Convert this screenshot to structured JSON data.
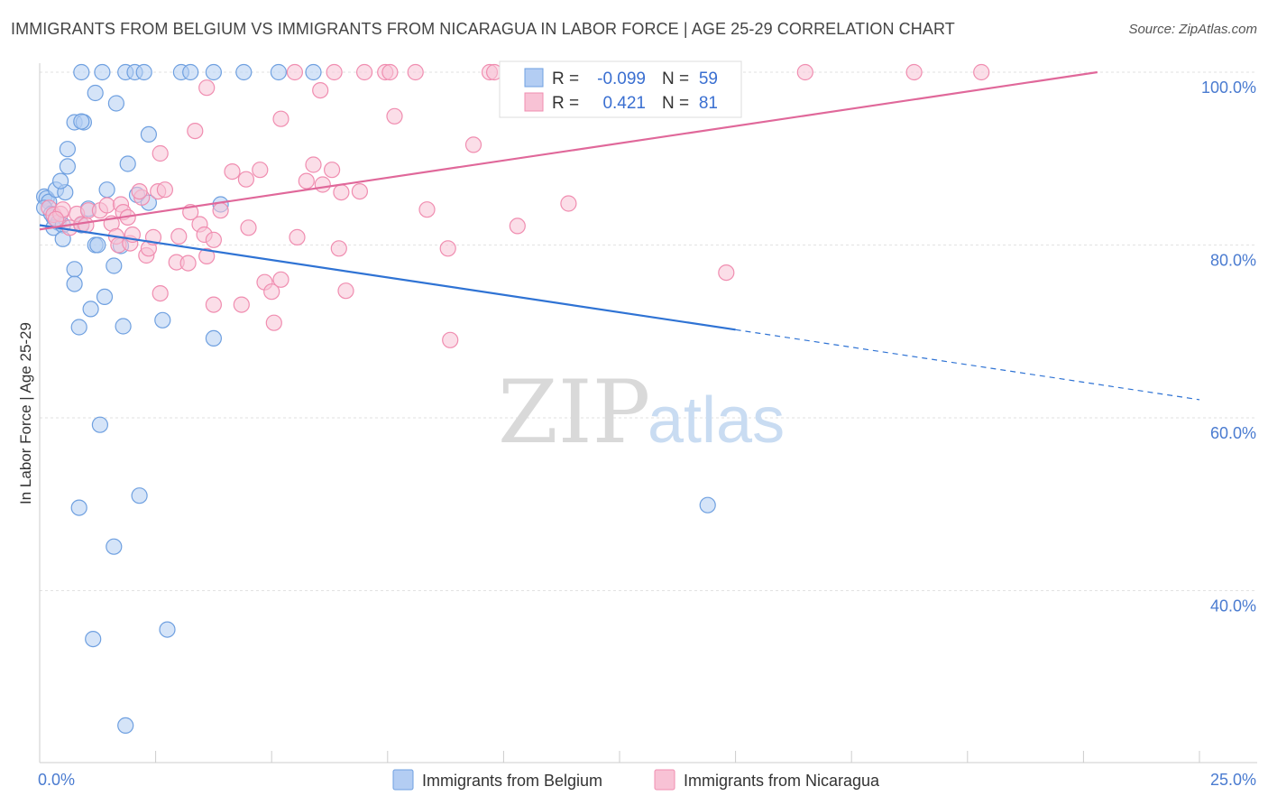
{
  "chart_data": {
    "type": "scatter",
    "title": "IMMIGRANTS FROM BELGIUM VS IMMIGRANTS FROM NICARAGUA IN LABOR FORCE | AGE 25-29 CORRELATION CHART",
    "source": "Source: ZipAtlas.com",
    "xlabel": "",
    "ylabel": "In Labor Force | Age 25-29",
    "xlim": [
      0,
      25
    ],
    "ylim": [
      22,
      101
    ],
    "x_tick_labels": [
      {
        "v": 0,
        "t": "0.0%"
      },
      {
        "v": 25,
        "t": "25.0%"
      }
    ],
    "x_ticks": [
      0,
      2.5,
      5,
      7.5,
      10,
      12.5,
      15,
      17.5,
      20,
      22.5,
      25
    ],
    "y_ticks": [
      {
        "v": 100,
        "t": "100.0%"
      },
      {
        "v": 80,
        "t": "80.0%"
      },
      {
        "v": 60,
        "t": "60.0%"
      },
      {
        "v": 40,
        "t": "40.0%"
      }
    ],
    "watermark": {
      "zip": "ZIP",
      "atlas": "atlas"
    },
    "legend_top": [
      {
        "series": "Immigrants from Belgium",
        "r_label": "R =",
        "r_value": "-0.099",
        "n_label": "N =",
        "n_value": "59"
      },
      {
        "series": "Immigrants from Nicaragua",
        "r_label": "R =",
        "r_value": "0.421",
        "n_label": "N =",
        "n_value": "81"
      }
    ],
    "series": [
      {
        "name": "Immigrants from Belgium",
        "color": "#6fa0e0",
        "fill": "#b3cdf3",
        "line_color": "#2f73d4",
        "trend": {
          "x0": 0.0,
          "y0": 82.3,
          "x1": 15.0,
          "y1": 70.2,
          "dash_to_x": 25.0,
          "dash_to_y": 62.1
        },
        "points": [
          [
            0.1,
            85.6
          ],
          [
            0.15,
            85.4
          ],
          [
            0.2,
            85.0
          ],
          [
            0.1,
            84.3
          ],
          [
            0.3,
            83.2
          ],
          [
            0.25,
            83.6
          ],
          [
            0.4,
            82.6
          ],
          [
            0.3,
            82.0
          ],
          [
            0.5,
            82.3
          ],
          [
            0.5,
            80.7
          ],
          [
            0.35,
            86.4
          ],
          [
            0.55,
            86.1
          ],
          [
            0.45,
            87.4
          ],
          [
            0.6,
            89.1
          ],
          [
            0.6,
            91.1
          ],
          [
            0.75,
            94.2
          ],
          [
            0.95,
            94.2
          ],
          [
            0.9,
            94.3
          ],
          [
            1.2,
            97.6
          ],
          [
            1.65,
            96.4
          ],
          [
            0.9,
            82.3
          ],
          [
            1.05,
            84.2
          ],
          [
            1.2,
            80.0
          ],
          [
            1.25,
            80.0
          ],
          [
            1.45,
            86.4
          ],
          [
            1.6,
            77.6
          ],
          [
            1.75,
            79.9
          ],
          [
            1.9,
            89.4
          ],
          [
            2.1,
            85.8
          ],
          [
            2.35,
            84.9
          ],
          [
            2.35,
            92.8
          ],
          [
            2.65,
            71.3
          ],
          [
            3.9,
            84.7
          ],
          [
            0.75,
            77.2
          ],
          [
            0.75,
            75.5
          ],
          [
            1.4,
            74.0
          ],
          [
            1.1,
            72.6
          ],
          [
            0.85,
            70.5
          ],
          [
            1.8,
            70.6
          ],
          [
            3.75,
            69.2
          ],
          [
            0.9,
            100.0
          ],
          [
            1.35,
            100.0
          ],
          [
            1.85,
            100.0
          ],
          [
            2.05,
            100.0
          ],
          [
            2.25,
            100.0
          ],
          [
            3.05,
            100.0
          ],
          [
            3.25,
            100.0
          ],
          [
            3.75,
            100.0
          ],
          [
            4.4,
            100.0
          ],
          [
            5.15,
            100.0
          ],
          [
            5.9,
            100.0
          ],
          [
            1.3,
            59.2
          ],
          [
            0.85,
            49.6
          ],
          [
            2.15,
            51.0
          ],
          [
            1.6,
            45.1
          ],
          [
            2.75,
            35.5
          ],
          [
            1.15,
            34.4
          ],
          [
            1.85,
            24.4
          ],
          [
            14.4,
            49.9
          ]
        ]
      },
      {
        "name": "Immigrants from Nicaragua",
        "color": "#f08db0",
        "fill": "#f8c2d5",
        "line_color": "#e0689a",
        "trend": {
          "x0": 0.0,
          "y0": 81.8,
          "x1": 22.8,
          "y1": 100.0,
          "dash_to_x": 22.8,
          "dash_to_y": 100.0
        },
        "points": [
          [
            0.2,
            84.3
          ],
          [
            0.3,
            83.5
          ],
          [
            0.45,
            83.6
          ],
          [
            0.5,
            84.1
          ],
          [
            0.65,
            82.0
          ],
          [
            0.8,
            83.6
          ],
          [
            0.9,
            82.4
          ],
          [
            1.0,
            82.3
          ],
          [
            1.05,
            84.0
          ],
          [
            1.3,
            84.0
          ],
          [
            1.45,
            84.6
          ],
          [
            1.55,
            82.5
          ],
          [
            1.65,
            81.0
          ],
          [
            1.75,
            84.7
          ],
          [
            1.7,
            80.0
          ],
          [
            1.8,
            83.8
          ],
          [
            1.9,
            83.2
          ],
          [
            1.95,
            80.2
          ],
          [
            2.0,
            81.2
          ],
          [
            2.2,
            85.5
          ],
          [
            2.15,
            86.2
          ],
          [
            2.3,
            78.8
          ],
          [
            2.35,
            79.6
          ],
          [
            2.45,
            80.9
          ],
          [
            2.55,
            86.2
          ],
          [
            2.7,
            86.4
          ],
          [
            2.95,
            78.0
          ],
          [
            3.0,
            81.0
          ],
          [
            3.2,
            77.9
          ],
          [
            3.25,
            83.8
          ],
          [
            3.45,
            82.4
          ],
          [
            3.55,
            81.2
          ],
          [
            3.6,
            78.7
          ],
          [
            3.75,
            80.6
          ],
          [
            3.9,
            84.0
          ],
          [
            4.15,
            88.5
          ],
          [
            4.45,
            87.6
          ],
          [
            4.75,
            88.7
          ],
          [
            4.5,
            82.0
          ],
          [
            4.85,
            75.7
          ],
          [
            5.0,
            74.6
          ],
          [
            5.2,
            76.0
          ],
          [
            5.05,
            71.0
          ],
          [
            5.55,
            80.9
          ],
          [
            5.75,
            87.4
          ],
          [
            5.9,
            89.3
          ],
          [
            6.1,
            87.0
          ],
          [
            6.3,
            88.7
          ],
          [
            6.45,
            79.6
          ],
          [
            6.5,
            86.1
          ],
          [
            6.6,
            74.7
          ],
          [
            6.9,
            86.2
          ],
          [
            3.75,
            73.1
          ],
          [
            4.35,
            73.1
          ],
          [
            2.6,
            74.4
          ],
          [
            2.6,
            90.6
          ],
          [
            3.35,
            93.2
          ],
          [
            3.6,
            98.2
          ],
          [
            5.2,
            94.6
          ],
          [
            6.05,
            97.9
          ],
          [
            7.65,
            94.9
          ],
          [
            8.35,
            84.1
          ],
          [
            8.8,
            79.6
          ],
          [
            8.85,
            69.0
          ],
          [
            9.35,
            91.6
          ],
          [
            10.3,
            82.2
          ],
          [
            11.4,
            84.8
          ],
          [
            14.8,
            76.8
          ],
          [
            5.5,
            100.0
          ],
          [
            6.35,
            100.0
          ],
          [
            7.0,
            100.0
          ],
          [
            7.45,
            100.0
          ],
          [
            7.55,
            100.0
          ],
          [
            8.1,
            100.0
          ],
          [
            9.7,
            100.0
          ],
          [
            9.8,
            100.0
          ],
          [
            10.4,
            100.0
          ],
          [
            16.5,
            100.0
          ],
          [
            18.85,
            100.0
          ],
          [
            20.3,
            100.0
          ],
          [
            0.35,
            83.0
          ]
        ]
      }
    ]
  }
}
